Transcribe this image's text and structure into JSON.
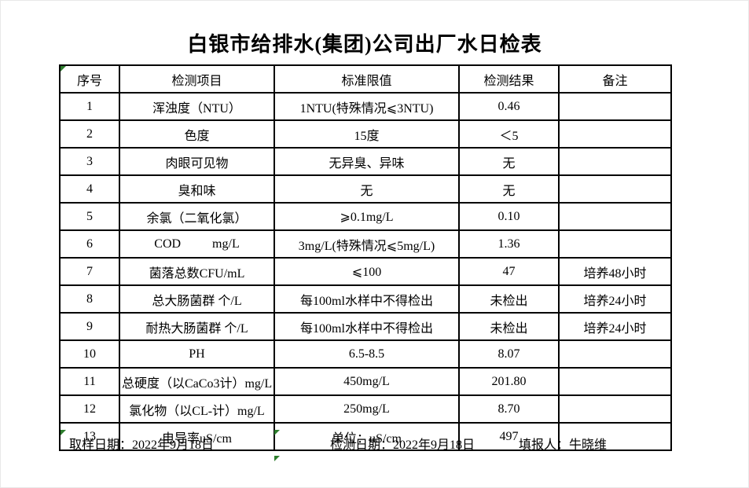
{
  "page": {
    "background": "#ffffff",
    "table_border_color": "#000000",
    "error_indicator_color": "#2d7d2d"
  },
  "title": "白银市给排水(集团)公司出厂水日检表",
  "table": {
    "headers": {
      "no": "序号",
      "item": "检测项目",
      "limit": "标准限值",
      "result": "检测结果",
      "remark": "备注"
    },
    "rows": [
      {
        "no": "1",
        "item": "浑浊度（NTU）",
        "limit": "1NTU(特殊情况⩽3NTU)",
        "result": "0.46",
        "remark": ""
      },
      {
        "no": "2",
        "item": "色度",
        "limit": "15度",
        "result": "＜5",
        "remark": ""
      },
      {
        "no": "3",
        "item": "肉眼可见物",
        "limit": "无异臭、异味",
        "result": "无",
        "remark": ""
      },
      {
        "no": "4",
        "item": "臭和味",
        "limit": "无",
        "result": "无",
        "remark": ""
      },
      {
        "no": "5",
        "item": "余氯（二氧化氯）",
        "limit": "⩾0.1mg/L",
        "result": "0.10",
        "remark": ""
      },
      {
        "no": "6",
        "item": "COD          mg/L",
        "limit": "3mg/L(特殊情况⩽5mg/L)",
        "result": "1.36",
        "remark": ""
      },
      {
        "no": "7",
        "item": "菌落总数CFU/mL",
        "limit": "⩽100",
        "result": "47",
        "remark": "培养48小时"
      },
      {
        "no": "8",
        "item": "总大肠菌群 个/L",
        "limit": "每100ml水样中不得检出",
        "result": "未检出",
        "remark": "培养24小时"
      },
      {
        "no": "9",
        "item": "耐热大肠菌群 个/L",
        "limit": "每100ml水样中不得检出",
        "result": "未检出",
        "remark": "培养24小时"
      },
      {
        "no": "10",
        "item": "PH",
        "limit": "6.5-8.5",
        "result": "8.07",
        "remark": ""
      },
      {
        "no": "11",
        "item": "总硬度（以CaCo3计）mg/L",
        "limit": "450mg/L",
        "result": "201.80",
        "remark": ""
      },
      {
        "no": "12",
        "item": "氯化物（以CL-计）mg/L",
        "limit": "250mg/L",
        "result": "8.70",
        "remark": ""
      },
      {
        "no": "13",
        "item": "电导率uS/cm",
        "limit": "单位：uS/cm",
        "result": "497",
        "remark": ""
      }
    ]
  },
  "footer": {
    "sampling_date": "取样日期：2022年9月18日",
    "test_date": "检测日期：2022年9月18日",
    "reporter": "填报人：牛晓维"
  },
  "icons": {
    "error_indicator": "excel-green-triangle"
  }
}
